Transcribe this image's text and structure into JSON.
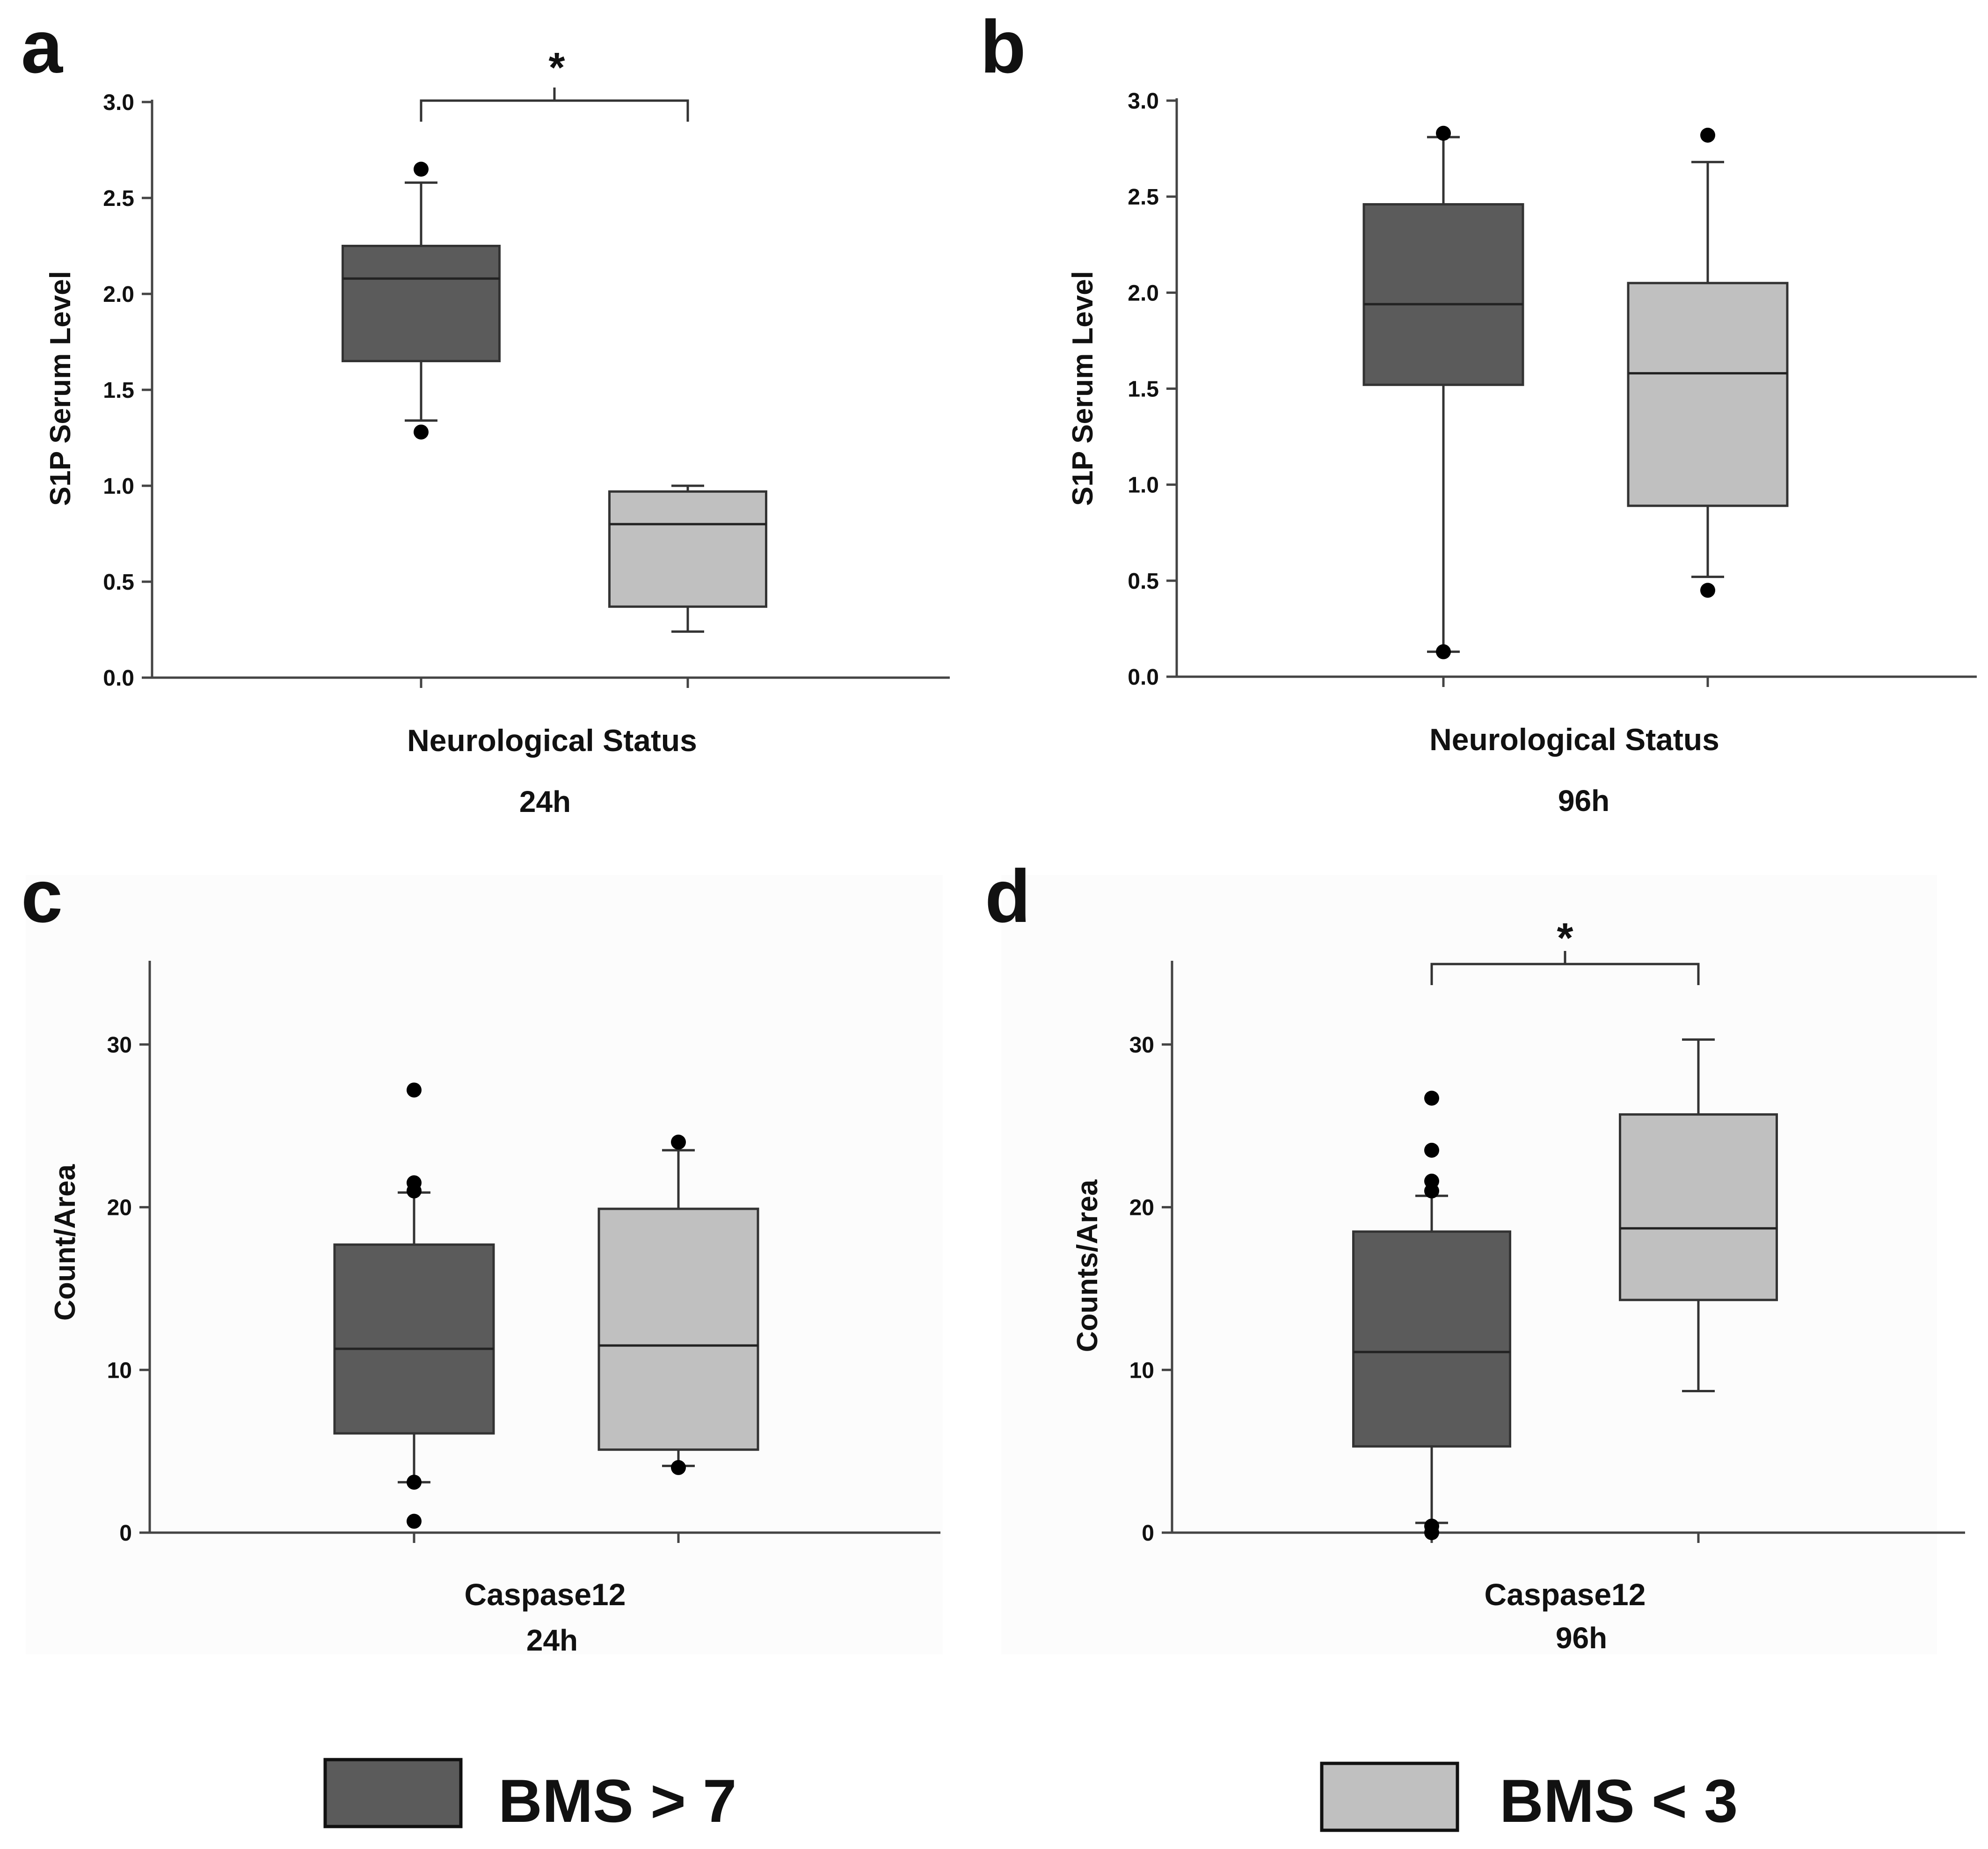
{
  "colors": {
    "group1": "#5b5b5b",
    "group2": "#c0c0c0",
    "outline": "#333333",
    "outlier": "#000000"
  },
  "legend": [
    {
      "label": "BMS > 7",
      "color": "#5b5b5b"
    },
    {
      "label": "BMS < 3",
      "color": "#c0c0c0"
    }
  ],
  "chart_data": [
    {
      "panel": "a",
      "type": "box",
      "ylabel": "S1P Serum Level",
      "xlabel": "Neurological Status",
      "subtitle": "24h",
      "ylim": [
        0,
        3.0
      ],
      "yticks": [
        0.0,
        0.5,
        1.0,
        1.5,
        2.0,
        2.5,
        3.0
      ],
      "ytick_decimals": 1,
      "significance": "*",
      "groups": [
        {
          "name": "BMS > 7",
          "whisker_low": 1.34,
          "q1": 1.65,
          "median": 2.08,
          "q3": 2.25,
          "whisker_high": 2.58,
          "outliers": [
            2.65,
            1.28
          ]
        },
        {
          "name": "BMS < 3",
          "whisker_low": 0.24,
          "q1": 0.37,
          "median": 0.8,
          "q3": 0.97,
          "whisker_high": 1.0,
          "outliers": []
        }
      ]
    },
    {
      "panel": "b",
      "type": "box",
      "ylabel": "S1P Serum Level",
      "xlabel": "Neurological Status",
      "subtitle": "96h",
      "ylim": [
        0,
        3.0
      ],
      "yticks": [
        0.0,
        0.5,
        1.0,
        1.5,
        2.0,
        2.5,
        3.0
      ],
      "ytick_decimals": 1,
      "significance": "",
      "groups": [
        {
          "name": "BMS > 7",
          "whisker_low": 0.13,
          "q1": 1.52,
          "median": 1.94,
          "q3": 2.46,
          "whisker_high": 2.81,
          "outliers": [
            2.83,
            0.13
          ]
        },
        {
          "name": "BMS < 3",
          "whisker_low": 0.52,
          "q1": 0.89,
          "median": 1.58,
          "q3": 2.05,
          "whisker_high": 2.68,
          "outliers": [
            2.82,
            0.45
          ]
        }
      ]
    },
    {
      "panel": "c",
      "type": "box",
      "ylabel": "Count/Area",
      "xlabel": "Caspase12",
      "subtitle": "24h",
      "ylim": [
        0,
        35
      ],
      "yticks": [
        0,
        10,
        20,
        30
      ],
      "ytick_decimals": 0,
      "significance": "",
      "groups": [
        {
          "name": "BMS > 7",
          "whisker_low": 3.1,
          "q1": 6.1,
          "median": 11.3,
          "q3": 17.7,
          "whisker_high": 20.9,
          "outliers": [
            27.2,
            21.5,
            21.0,
            3.1,
            0.7
          ]
        },
        {
          "name": "BMS < 3",
          "whisker_low": 4.1,
          "q1": 5.1,
          "median": 11.5,
          "q3": 19.9,
          "whisker_high": 23.5,
          "outliers": [
            24.0,
            4.0
          ]
        }
      ]
    },
    {
      "panel": "d",
      "type": "box",
      "ylabel": "Counts/Area",
      "xlabel": "Caspase12",
      "subtitle": "96h",
      "ylim": [
        0,
        35
      ],
      "yticks": [
        0,
        10,
        20,
        30
      ],
      "ytick_decimals": 0,
      "significance": "*",
      "groups": [
        {
          "name": "BMS > 7",
          "whisker_low": 0.6,
          "q1": 5.3,
          "median": 11.1,
          "q3": 18.5,
          "whisker_high": 20.7,
          "outliers": [
            26.7,
            23.5,
            21.6,
            21.0,
            0.4,
            0.0
          ]
        },
        {
          "name": "BMS < 3",
          "whisker_low": 8.7,
          "q1": 14.3,
          "median": 18.7,
          "q3": 25.7,
          "whisker_high": 30.3,
          "outliers": []
        }
      ]
    }
  ]
}
